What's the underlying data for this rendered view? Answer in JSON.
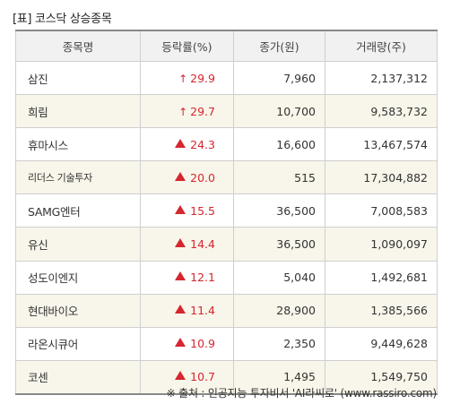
{
  "title": "[표] 코스닥 상승종목",
  "columns": [
    "종목명",
    "등락률(%)",
    "종가(원)",
    "거래량(주)"
  ],
  "rows": [
    {
      "name": "삼진",
      "rate": "29.9",
      "indicator": "up-arrow",
      "price": "7,960",
      "volume": "2,137,312"
    },
    {
      "name": "희림",
      "rate": "29.7",
      "indicator": "up-arrow",
      "price": "10,700",
      "volume": "9,583,732"
    },
    {
      "name": "휴마시스",
      "rate": "24.3",
      "indicator": "up-triangle",
      "price": "16,600",
      "volume": "13,467,574"
    },
    {
      "name": "리더스 기술투자",
      "rate": "20.0",
      "indicator": "up-triangle",
      "price": "515",
      "volume": "17,304,882"
    },
    {
      "name": "SAMG엔터",
      "rate": "15.5",
      "indicator": "up-triangle",
      "price": "36,500",
      "volume": "7,008,583"
    },
    {
      "name": "유신",
      "rate": "14.4",
      "indicator": "up-triangle",
      "price": "36,500",
      "volume": "1,090,097"
    },
    {
      "name": "성도이엔지",
      "rate": "12.1",
      "indicator": "up-triangle",
      "price": "5,040",
      "volume": "1,492,681"
    },
    {
      "name": "현대바이오",
      "rate": "11.4",
      "indicator": "up-triangle",
      "price": "28,900",
      "volume": "1,385,566"
    },
    {
      "name": "라온시큐어",
      "rate": "10.9",
      "indicator": "up-triangle",
      "price": "2,350",
      "volume": "9,449,628"
    },
    {
      "name": "코센",
      "rate": "10.7",
      "indicator": "up-triangle",
      "price": "1,495",
      "volume": "1,549,750"
    }
  ],
  "source": "※ 출처 : 인공지능 투자비서 'AI라씨로' (www.rassiro.com)",
  "colors": {
    "up": "#d6262f",
    "alt_row": "#f8f5ea",
    "header_bg": "#f1f1f1"
  }
}
